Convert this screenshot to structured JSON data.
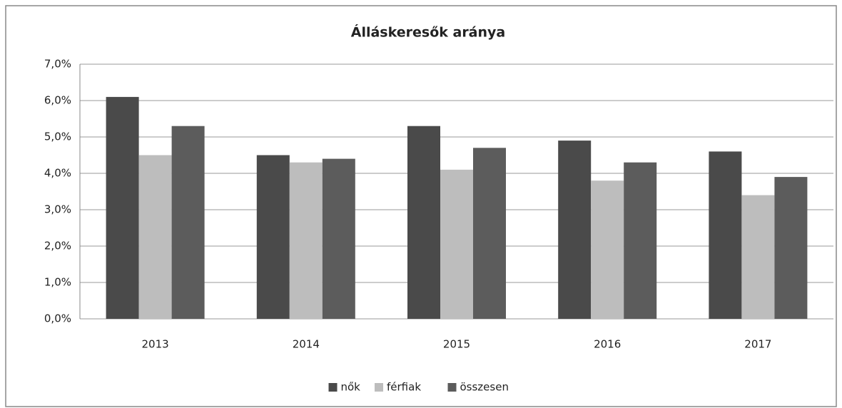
{
  "chart_data": {
    "type": "bar",
    "title": "Álláskeresők aránya",
    "categories": [
      "2013",
      "2014",
      "2015",
      "2016",
      "2017"
    ],
    "series": [
      {
        "name": "nők",
        "color": "#4a4a4a",
        "values": [
          6.1,
          4.5,
          5.3,
          4.9,
          4.6
        ]
      },
      {
        "name": "férfiak",
        "color": "#bdbdbd",
        "values": [
          4.5,
          4.3,
          4.1,
          3.8,
          3.4
        ]
      },
      {
        "name": "összesen",
        "color": "#5c5c5c",
        "values": [
          5.3,
          4.4,
          4.7,
          4.3,
          3.9
        ]
      }
    ],
    "ylim": [
      0,
      7
    ],
    "yticks": [
      {
        "value": 0,
        "label": "0,0%"
      },
      {
        "value": 1,
        "label": "1,0%"
      },
      {
        "value": 2,
        "label": "2,0%"
      },
      {
        "value": 3,
        "label": "3,0%"
      },
      {
        "value": 4,
        "label": "4,0%"
      },
      {
        "value": 5,
        "label": "5,0%"
      },
      {
        "value": 6,
        "label": "6,0%"
      },
      {
        "value": 7,
        "label": "7,0%"
      }
    ],
    "grid": true,
    "legend": "bottom"
  }
}
